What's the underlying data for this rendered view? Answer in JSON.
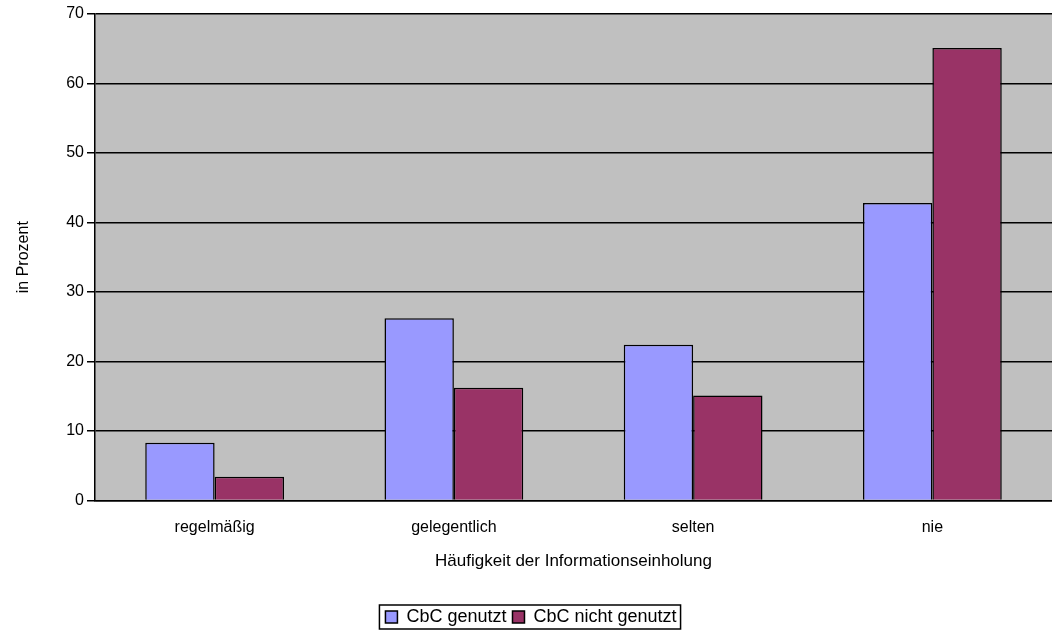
{
  "chart_data": {
    "type": "bar",
    "xlabel": "Häufigkeit der Informationseinholung",
    "ylabel": "in Prozent",
    "categories": [
      "regelmäßig",
      "gelegentlich",
      "selten",
      "nie"
    ],
    "series": [
      {
        "name": "CbC genutzt",
        "color": "#9999ff",
        "values": [
          8.3,
          26.2,
          22.4,
          42.8
        ]
      },
      {
        "name": "CbC nicht genutzt",
        "color": "#993366",
        "values": [
          3.4,
          16.2,
          15.1,
          65.1
        ]
      }
    ],
    "ylim": [
      0,
      70
    ],
    "yticks": [
      0,
      10,
      20,
      30,
      40,
      50,
      60,
      70
    ],
    "grid": "y",
    "legend": "bottom"
  }
}
